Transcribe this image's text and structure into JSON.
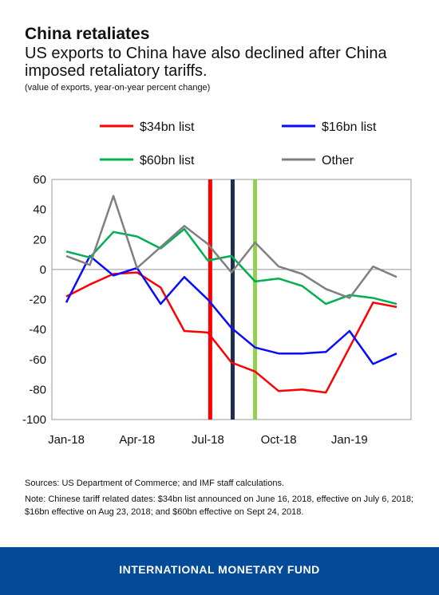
{
  "header": {
    "title": "China retaliates",
    "subtitle": "US exports to China have also declined after China imposed retaliatory tariffs.",
    "unit_note": "(value of exports, year-on-year percent change)"
  },
  "chart_data": {
    "type": "line",
    "title": "",
    "xlabel": "",
    "ylabel": "",
    "ylim": [
      -100,
      60
    ],
    "yticks": [
      60,
      40,
      20,
      0,
      -20,
      -40,
      -60,
      -80,
      -100
    ],
    "x_tick_labels": [
      "Jan-18",
      "Apr-18",
      "Jul-18",
      "Oct-18",
      "Jan-19"
    ],
    "x_tick_index": [
      0,
      3,
      6,
      9,
      12
    ],
    "categories": [
      "Jan-18",
      "Feb-18",
      "Mar-18",
      "Apr-18",
      "May-18",
      "Jun-18",
      "Jul-18",
      "Aug-18",
      "Sep-18",
      "Oct-18",
      "Nov-18",
      "Dec-18",
      "Jan-19",
      "Feb-19",
      "Mar-19"
    ],
    "legend_position": "top",
    "grid": false,
    "series": [
      {
        "name": "$34bn list",
        "color": "#ff0000",
        "values": [
          -18,
          -10,
          -3,
          -2,
          -12,
          -41,
          -42,
          -62,
          -68,
          -81,
          -80,
          -82,
          -52,
          -22,
          -25
        ]
      },
      {
        "name": "$16bn list",
        "color": "#0a0aff",
        "values": [
          -22,
          9,
          -4,
          1,
          -23,
          -5,
          -20,
          -39,
          -52,
          -56,
          -56,
          -55,
          -41,
          -63,
          -56
        ]
      },
      {
        "name": "$60bn list",
        "color": "#00b050",
        "values": [
          12,
          8,
          25,
          22,
          14,
          27,
          6,
          9,
          -8,
          -6,
          -11,
          -23,
          -17,
          -19,
          -23
        ]
      },
      {
        "name": "Other",
        "color": "#808080",
        "values": [
          9,
          3,
          49,
          1,
          15,
          29,
          17,
          -2,
          18,
          2,
          -3,
          -13,
          -19,
          2,
          -5
        ]
      }
    ],
    "event_lines": [
      {
        "x_index": 6.1,
        "color": "#ff0000"
      },
      {
        "x_index": 7.05,
        "color": "#1f2e50"
      },
      {
        "x_index": 8.0,
        "color": "#92d050"
      }
    ]
  },
  "notes": {
    "sources": "Sources: US Department of Commerce; and IMF staff calculations.",
    "note": "Note: Chinese tariff related dates: $34bn list announced on June 16, 2018, effective on July 6, 2018; $16bn effective on Aug 23, 2018; and $60bn effective on Sept 24, 2018."
  },
  "footer": {
    "label": "INTERNATIONAL MONETARY FUND",
    "color": "#034a99"
  }
}
